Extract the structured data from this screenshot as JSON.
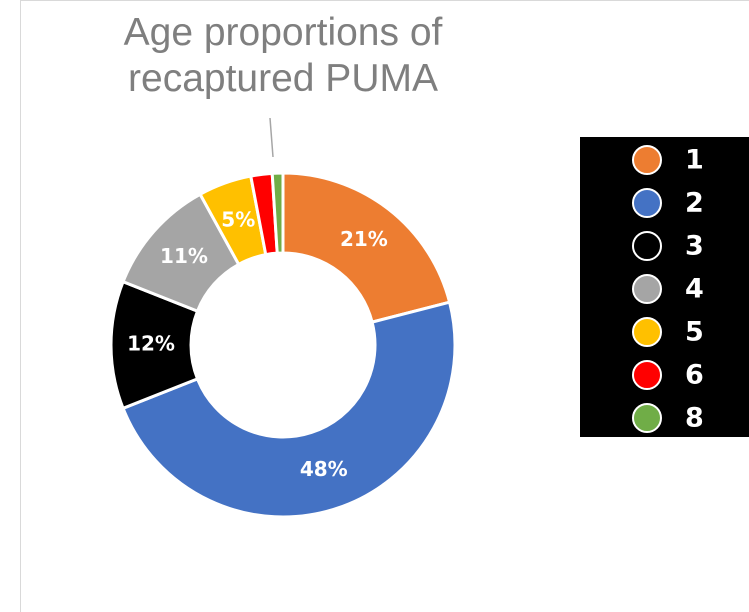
{
  "chart_data": {
    "type": "donut",
    "title": "Age proportions of recaptured PUMA",
    "categories": [
      "1",
      "2",
      "3",
      "4",
      "5",
      "6",
      "8"
    ],
    "values": [
      21,
      48,
      12,
      11,
      5,
      2,
      1
    ],
    "value_labels": [
      "21%",
      "48%",
      "12%",
      "11%",
      "5%",
      null,
      null
    ],
    "colors": [
      "#ed7d31",
      "#4472c4",
      "#000000",
      "#a5a5a5",
      "#ffc000",
      "#ff0000",
      "#70ad47"
    ],
    "legend": "right"
  }
}
